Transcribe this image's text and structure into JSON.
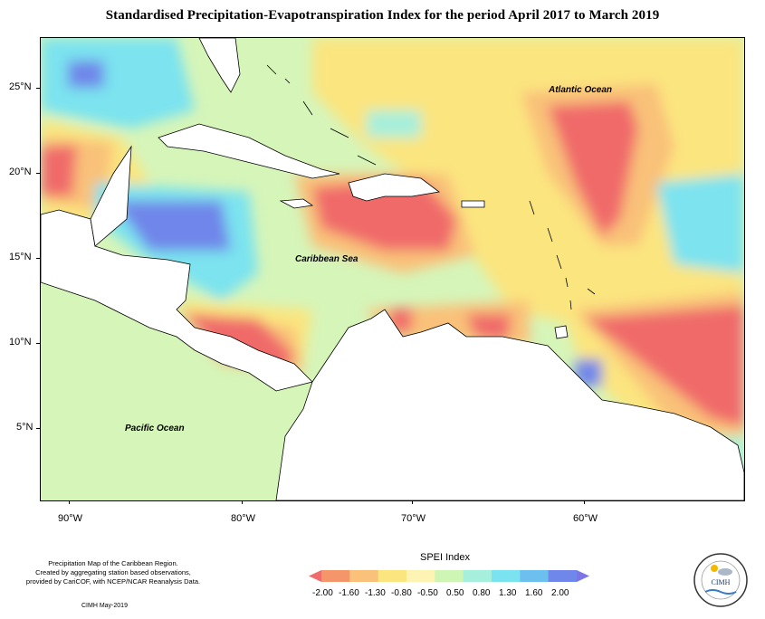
{
  "title": "Standardised Precipitation-Evapotranspiration Index for the period April 2017 to March 2019",
  "lat_labels": [
    "25°N",
    "20°N",
    "15°N",
    "10°N",
    "5°N"
  ],
  "lon_labels": [
    "90°W",
    "80°W",
    "70°W",
    "60°W"
  ],
  "places": {
    "atlantic": "Atlantic Ocean",
    "caribbean": "Caribbean Sea",
    "pacific": "Pacific Ocean"
  },
  "footer": {
    "note_line1": "Precipitation Map of the Caribbean Region.",
    "note_line2": "Created by aggregating station based observations,",
    "note_line3": "provided by CariCOF, with NCEP/NCAR Reanalysis Data.",
    "date": "CIMH May-2019"
  },
  "legend": {
    "title": "SPEI Index",
    "labels": [
      "-2.00",
      "-1.60",
      "-1.30",
      "-0.80",
      "-0.50",
      "0.50",
      "0.80",
      "1.30",
      "1.60",
      "2.00"
    ],
    "colors": [
      "#f06b6b",
      "#f5956a",
      "#f9c179",
      "#fbe57f",
      "#fdf4b3",
      "#cff5b4",
      "#a6efdc",
      "#7be3ef",
      "#6cc0ee",
      "#6f86ea",
      "#7b75e8"
    ]
  },
  "logo": {
    "text": "CIMH"
  }
}
